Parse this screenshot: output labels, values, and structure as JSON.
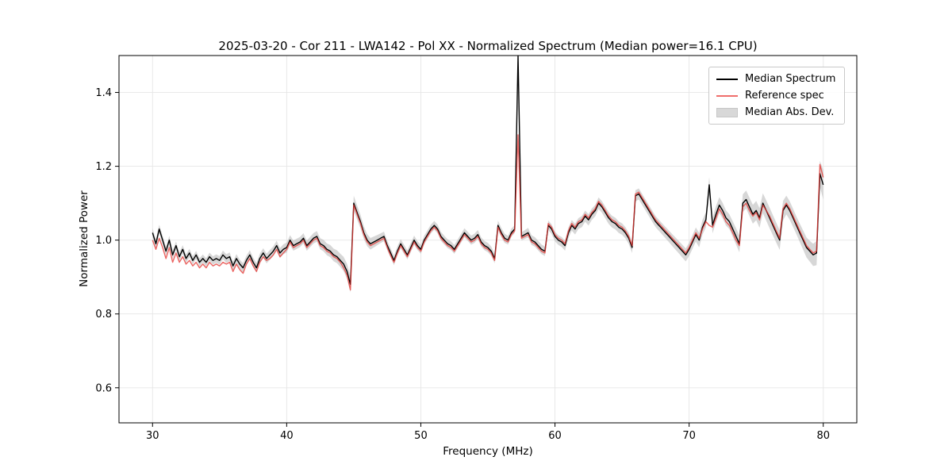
{
  "figure": {
    "background": "#ffffff"
  },
  "chart_data": {
    "type": "line",
    "title": "2025-03-20 - Cor 211 - LWA142 - Pol XX - Normalized Spectrum (Median power=16.1 CPU)",
    "xlabel": "Frequency (MHz)",
    "ylabel": "Normalized Power",
    "xlim": [
      27.5,
      82.5
    ],
    "ylim": [
      0.505,
      1.5
    ],
    "xticks": [
      30,
      40,
      50,
      60,
      70,
      80
    ],
    "yticks": [
      0.6,
      0.8,
      1.0,
      1.2,
      1.4
    ],
    "grid": true,
    "legend_position": "upper right",
    "x_start": 30.0,
    "x_step": 0.25,
    "series": [
      {
        "name": "Median Spectrum",
        "color": "#000000",
        "width": 1.4,
        "opacity": 1,
        "values": [
          1.02,
          0.99,
          1.03,
          1.0,
          0.97,
          1.0,
          0.96,
          0.985,
          0.955,
          0.975,
          0.95,
          0.965,
          0.945,
          0.96,
          0.94,
          0.95,
          0.94,
          0.955,
          0.945,
          0.95,
          0.945,
          0.96,
          0.95,
          0.955,
          0.93,
          0.95,
          0.935,
          0.925,
          0.945,
          0.96,
          0.94,
          0.925,
          0.95,
          0.965,
          0.95,
          0.96,
          0.97,
          0.985,
          0.965,
          0.975,
          0.98,
          1.0,
          0.985,
          0.99,
          0.995,
          1.005,
          0.985,
          0.995,
          1.005,
          1.01,
          0.99,
          0.985,
          0.975,
          0.97,
          0.96,
          0.955,
          0.945,
          0.935,
          0.915,
          0.88,
          1.1,
          1.075,
          1.05,
          1.02,
          1.0,
          0.99,
          0.995,
          1.0,
          1.005,
          1.01,
          0.985,
          0.965,
          0.945,
          0.97,
          0.99,
          0.975,
          0.96,
          0.98,
          1.0,
          0.985,
          0.975,
          1.0,
          1.015,
          1.03,
          1.04,
          1.03,
          1.01,
          1.0,
          0.99,
          0.985,
          0.975,
          0.99,
          1.005,
          1.02,
          1.01,
          1.0,
          1.005,
          1.015,
          0.995,
          0.985,
          0.98,
          0.97,
          0.95,
          1.04,
          1.02,
          1.005,
          1.0,
          1.02,
          1.03,
          1.5,
          1.01,
          1.015,
          1.02,
          1.0,
          0.995,
          0.985,
          0.975,
          0.97,
          1.04,
          1.03,
          1.01,
          1.0,
          0.995,
          0.985,
          1.02,
          1.04,
          1.03,
          1.045,
          1.05,
          1.065,
          1.055,
          1.07,
          1.08,
          1.1,
          1.09,
          1.075,
          1.06,
          1.05,
          1.045,
          1.035,
          1.03,
          1.02,
          1.005,
          0.98,
          1.12,
          1.125,
          1.11,
          1.095,
          1.08,
          1.065,
          1.05,
          1.04,
          1.03,
          1.02,
          1.01,
          1.0,
          0.99,
          0.98,
          0.97,
          0.96,
          0.975,
          0.995,
          1.015,
          1.0,
          1.035,
          1.055,
          1.15,
          1.04,
          1.07,
          1.095,
          1.08,
          1.06,
          1.05,
          1.03,
          1.01,
          0.99,
          1.1,
          1.11,
          1.09,
          1.07,
          1.08,
          1.06,
          1.1,
          1.08,
          1.06,
          1.04,
          1.02,
          1.0,
          1.08,
          1.095,
          1.08,
          1.06,
          1.04,
          1.02,
          1.0,
          0.98,
          0.97,
          0.96,
          0.965,
          1.18,
          1.15
        ]
      },
      {
        "name": "Reference spec",
        "color": "#e53935",
        "width": 1.4,
        "opacity": 0.78,
        "values": [
          1.0,
          0.975,
          1.005,
          0.98,
          0.95,
          0.98,
          0.94,
          0.965,
          0.94,
          0.955,
          0.935,
          0.945,
          0.93,
          0.94,
          0.925,
          0.935,
          0.925,
          0.94,
          0.93,
          0.935,
          0.93,
          0.94,
          0.935,
          0.94,
          0.915,
          0.935,
          0.92,
          0.91,
          0.935,
          0.95,
          0.93,
          0.915,
          0.94,
          0.955,
          0.945,
          0.95,
          0.96,
          0.975,
          0.955,
          0.965,
          0.975,
          0.995,
          0.98,
          0.985,
          0.99,
          1.0,
          0.98,
          0.99,
          1.0,
          1.005,
          0.985,
          0.98,
          0.97,
          0.965,
          0.955,
          0.95,
          0.94,
          0.925,
          0.905,
          0.865,
          1.095,
          1.07,
          1.045,
          1.015,
          0.995,
          0.985,
          0.99,
          0.995,
          1.0,
          1.005,
          0.98,
          0.958,
          0.94,
          0.965,
          0.985,
          0.97,
          0.955,
          0.975,
          0.995,
          0.98,
          0.97,
          0.995,
          1.01,
          1.025,
          1.035,
          1.025,
          1.005,
          0.995,
          0.985,
          0.98,
          0.97,
          0.985,
          1.0,
          1.015,
          1.005,
          0.995,
          1.0,
          1.01,
          0.99,
          0.98,
          0.975,
          0.965,
          0.945,
          1.035,
          1.015,
          1.0,
          0.995,
          1.015,
          1.025,
          1.285,
          1.005,
          1.01,
          1.015,
          0.995,
          0.99,
          0.98,
          0.97,
          0.965,
          1.045,
          1.035,
          1.015,
          1.005,
          1.0,
          0.99,
          1.025,
          1.045,
          1.035,
          1.05,
          1.055,
          1.07,
          1.06,
          1.075,
          1.085,
          1.105,
          1.095,
          1.08,
          1.065,
          1.055,
          1.05,
          1.04,
          1.035,
          1.025,
          1.01,
          0.985,
          1.125,
          1.13,
          1.115,
          1.1,
          1.085,
          1.07,
          1.055,
          1.045,
          1.035,
          1.025,
          1.015,
          1.005,
          0.995,
          0.985,
          0.975,
          0.965,
          0.98,
          1.0,
          1.02,
          1.005,
          1.03,
          1.05,
          1.04,
          1.035,
          1.06,
          1.085,
          1.07,
          1.05,
          1.04,
          1.02,
          1.0,
          0.985,
          1.09,
          1.1,
          1.08,
          1.065,
          1.075,
          1.055,
          1.095,
          1.08,
          1.065,
          1.045,
          1.025,
          1.005,
          1.085,
          1.1,
          1.085,
          1.065,
          1.045,
          1.025,
          1.005,
          0.985,
          0.975,
          0.965,
          0.97,
          1.205,
          1.17
        ]
      }
    ],
    "band": {
      "name": "Median Abs. Dev.",
      "color": "#bdbdbd",
      "opacity": 0.6,
      "around_series": 0,
      "mad_points": [
        [
          30,
          0.012
        ],
        [
          34,
          0.011
        ],
        [
          38,
          0.013
        ],
        [
          42,
          0.014
        ],
        [
          44,
          0.018
        ],
        [
          44.75,
          0.022
        ],
        [
          45,
          0.02
        ],
        [
          47,
          0.013
        ],
        [
          50,
          0.012
        ],
        [
          53,
          0.012
        ],
        [
          56,
          0.013
        ],
        [
          57.25,
          0.01
        ],
        [
          58,
          0.013
        ],
        [
          60,
          0.013
        ],
        [
          62,
          0.015
        ],
        [
          64,
          0.016
        ],
        [
          66,
          0.015
        ],
        [
          68,
          0.015
        ],
        [
          70,
          0.018
        ],
        [
          71,
          0.02
        ],
        [
          72,
          0.022
        ],
        [
          73,
          0.02
        ],
        [
          74,
          0.024
        ],
        [
          75,
          0.026
        ],
        [
          76,
          0.028
        ],
        [
          77,
          0.026
        ],
        [
          78,
          0.024
        ],
        [
          79,
          0.028
        ],
        [
          79.75,
          0.035
        ],
        [
          80,
          0.04
        ]
      ]
    }
  },
  "legend": {
    "items": [
      {
        "label": "Median Spectrum",
        "swatch": "line",
        "color": "#000000"
      },
      {
        "label": "Reference spec",
        "swatch": "line",
        "color": "#ef6e6b"
      },
      {
        "label": "Median Abs. Dev.",
        "swatch": "patch",
        "color": "#cccccc"
      }
    ]
  }
}
